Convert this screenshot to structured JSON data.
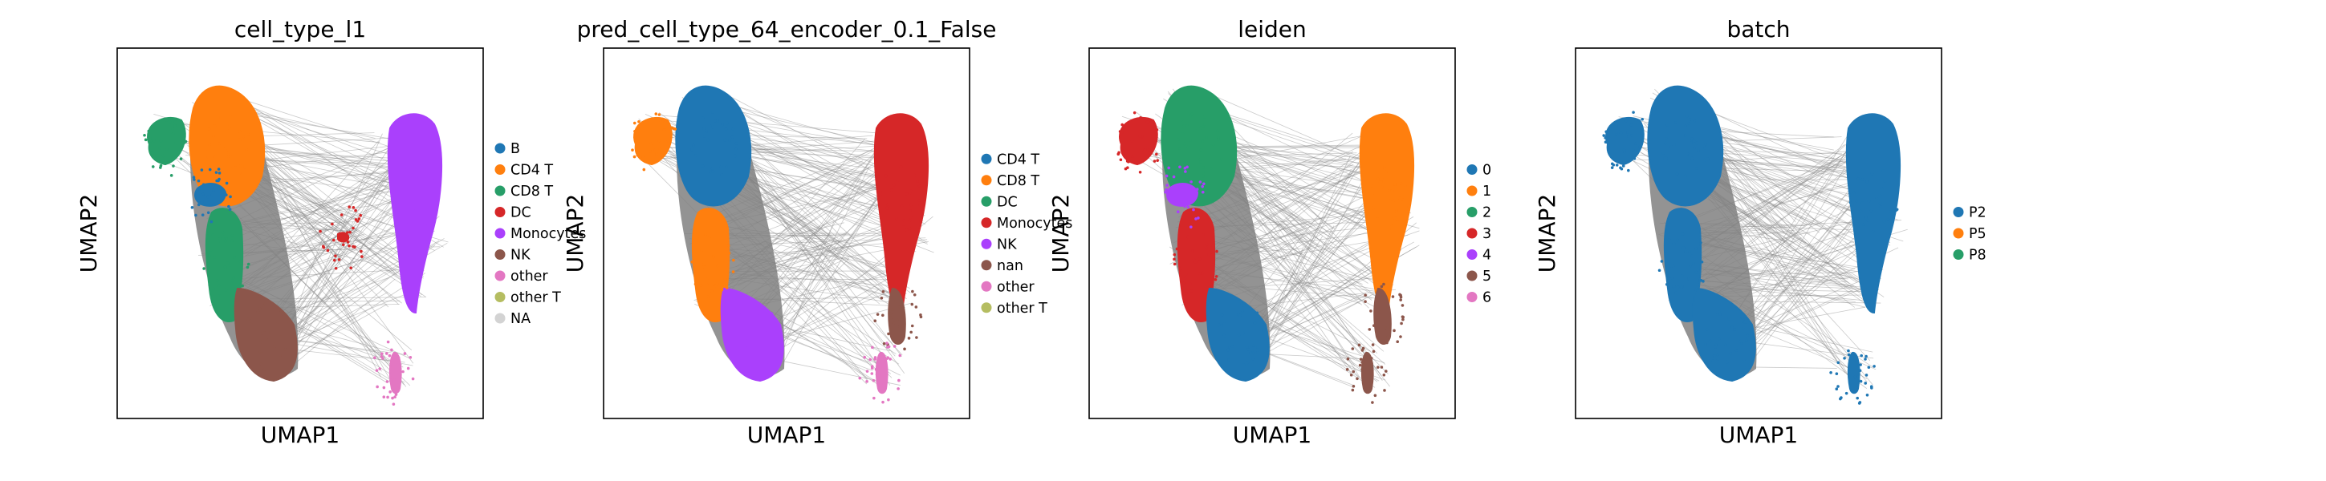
{
  "figure": {
    "background": "#ffffff"
  },
  "chart_data": [
    {
      "type": "scatter",
      "title": "cell_type_l1",
      "xlabel": "UMAP1",
      "ylabel": "UMAP2",
      "grid": false,
      "legend_placement": "right",
      "legend": [
        {
          "label": "B",
          "color": "#1f77b4"
        },
        {
          "label": "CD4 T",
          "color": "#ff7f0e"
        },
        {
          "label": "CD8 T",
          "color": "#279e68"
        },
        {
          "label": "DC",
          "color": "#d62728"
        },
        {
          "label": "Monocytes",
          "color": "#aa40fc"
        },
        {
          "label": "NK",
          "color": "#8c564b"
        },
        {
          "label": "other",
          "color": "#e377c2"
        },
        {
          "label": "other T",
          "color": "#b5bd61"
        },
        {
          "label": "NA",
          "color": "#d3d3d3"
        }
      ],
      "regions": [
        {
          "name": "left-cap",
          "color": "#279e68"
        },
        {
          "name": "upper-left",
          "color": "#ff7f0e"
        },
        {
          "name": "upper-left-spot",
          "color": "#1f77b4"
        },
        {
          "name": "left-stem",
          "color": "#279e68"
        },
        {
          "name": "left-lower",
          "color": "#8c564b"
        },
        {
          "name": "right-main",
          "color": "#aa40fc"
        },
        {
          "name": "right-tail",
          "color": "#e377c2"
        },
        {
          "name": "bridge-spot",
          "color": "#d62728"
        }
      ]
    },
    {
      "type": "scatter",
      "title": "pred_cell_type_64_encoder_0.1_False",
      "xlabel": "UMAP1",
      "ylabel": "UMAP2",
      "grid": false,
      "legend_placement": "right",
      "legend": [
        {
          "label": "CD4 T",
          "color": "#1f77b4"
        },
        {
          "label": "CD8 T",
          "color": "#ff7f0e"
        },
        {
          "label": "DC",
          "color": "#279e68"
        },
        {
          "label": "Monocytes",
          "color": "#d62728"
        },
        {
          "label": "NK",
          "color": "#aa40fc"
        },
        {
          "label": "nan",
          "color": "#8c564b"
        },
        {
          "label": "other",
          "color": "#e377c2"
        },
        {
          "label": "other T",
          "color": "#b5bd61"
        }
      ],
      "regions": [
        {
          "name": "left-cap",
          "color": "#ff7f0e"
        },
        {
          "name": "upper-left",
          "color": "#1f77b4"
        },
        {
          "name": "left-stem",
          "color": "#ff7f0e"
        },
        {
          "name": "left-lower",
          "color": "#aa40fc"
        },
        {
          "name": "right-main",
          "color": "#d62728"
        },
        {
          "name": "right-lower",
          "color": "#8c564b"
        },
        {
          "name": "right-tail",
          "color": "#e377c2"
        }
      ]
    },
    {
      "type": "scatter",
      "title": "leiden",
      "xlabel": "UMAP1",
      "ylabel": "UMAP2",
      "grid": false,
      "legend_placement": "right",
      "legend": [
        {
          "label": "0",
          "color": "#1f77b4"
        },
        {
          "label": "1",
          "color": "#ff7f0e"
        },
        {
          "label": "2",
          "color": "#279e68"
        },
        {
          "label": "3",
          "color": "#d62728"
        },
        {
          "label": "4",
          "color": "#aa40fc"
        },
        {
          "label": "5",
          "color": "#8c564b"
        },
        {
          "label": "6",
          "color": "#e377c2"
        }
      ],
      "regions": [
        {
          "name": "left-cap",
          "color": "#d62728"
        },
        {
          "name": "upper-left",
          "color": "#279e68"
        },
        {
          "name": "upper-left-spot",
          "color": "#aa40fc"
        },
        {
          "name": "left-stem",
          "color": "#d62728"
        },
        {
          "name": "left-lower",
          "color": "#1f77b4"
        },
        {
          "name": "right-main",
          "color": "#ff7f0e"
        },
        {
          "name": "right-lower",
          "color": "#8c564b"
        },
        {
          "name": "right-tail",
          "color": "#8c564b"
        }
      ]
    },
    {
      "type": "scatter",
      "title": "batch",
      "xlabel": "UMAP1",
      "ylabel": "UMAP2",
      "grid": false,
      "legend_placement": "right",
      "legend": [
        {
          "label": "P2",
          "color": "#1f77b4"
        },
        {
          "label": "P5",
          "color": "#ff7f0e"
        },
        {
          "label": "P8",
          "color": "#279e68"
        }
      ],
      "regions": [
        {
          "name": "left-cap",
          "color": "#1f77b4"
        },
        {
          "name": "upper-left",
          "color": "#1f77b4"
        },
        {
          "name": "left-stem",
          "color": "#1f77b4"
        },
        {
          "name": "left-lower",
          "color": "#1f77b4"
        },
        {
          "name": "right-main",
          "color": "#1f77b4"
        },
        {
          "name": "right-tail",
          "color": "#1f77b4"
        }
      ]
    }
  ]
}
